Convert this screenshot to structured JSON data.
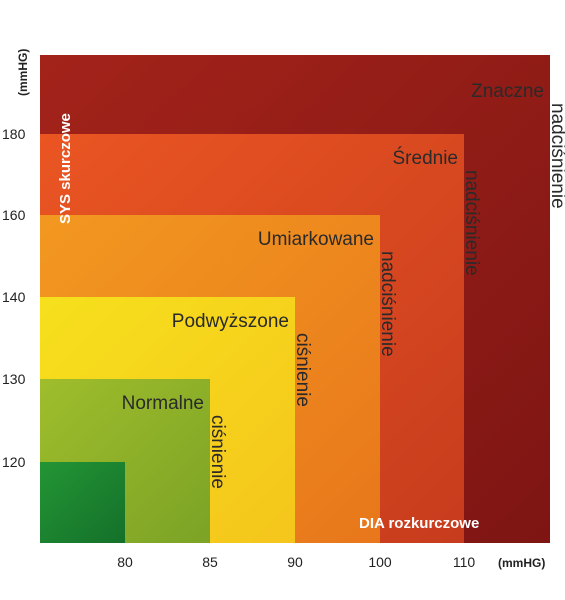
{
  "chart_data": {
    "type": "area",
    "title": "",
    "y_unit": "(mmHG)",
    "x_unit": "(mmHG)",
    "ylabel": "SYS skurczowe",
    "xlabel": "DIA rozkurczowe",
    "x_ticks": [
      80,
      85,
      90,
      100,
      110
    ],
    "y_ticks": [
      120,
      130,
      140,
      160,
      180
    ],
    "zones": [
      {
        "line1": "Znaczne",
        "line2": "nadciśnienie",
        "dia_max": null,
        "sys_max": null,
        "color": "#9c1e19"
      },
      {
        "line1": "Średnie",
        "line2": "nadciśnienie",
        "dia_max": 110,
        "sys_max": 180,
        "color": "#e24c24"
      },
      {
        "line1": "Umiarkowane",
        "line2": "nadciśnienie",
        "dia_max": 100,
        "sys_max": 160,
        "color": "#ef8a1e"
      },
      {
        "line1": "Podwyższone",
        "line2": "ciśnienie",
        "dia_max": 90,
        "sys_max": 140,
        "color": "#f3d51d"
      },
      {
        "line1": "Normalne",
        "line2": "ciśnienie",
        "dia_max": 85,
        "sys_max": 130,
        "color": "#93b52a"
      },
      {
        "line1": "",
        "line2": "",
        "dia_max": 80,
        "sys_max": 120,
        "color": "#1e8a2f"
      }
    ],
    "grid": false,
    "legend": "none"
  }
}
